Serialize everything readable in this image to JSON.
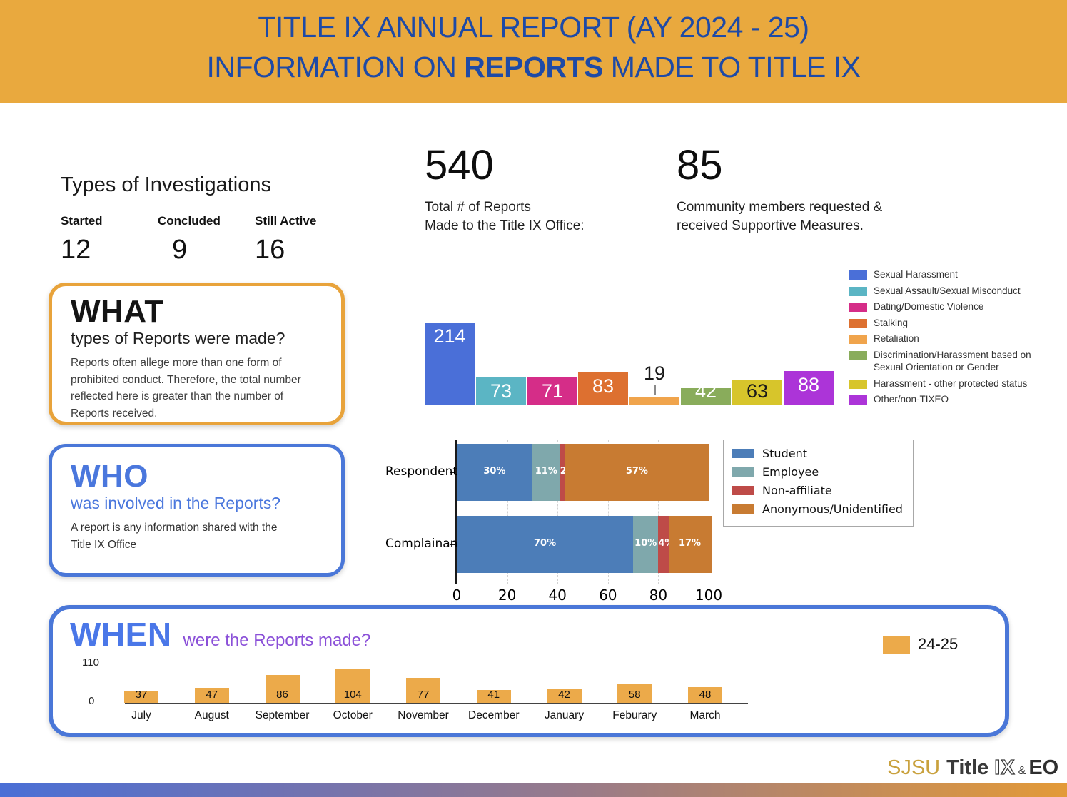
{
  "header": {
    "line1": "TITLE IX ANNUAL REPORT (AY 2024 - 25)",
    "line2_prefix": "INFORMATION ON ",
    "line2_bold": "REPORTS",
    "line2_suffix": " MADE TO TITLE IX",
    "bg_color": "#E9A93E",
    "text_color": "#1E4AA6"
  },
  "investigations": {
    "title": "Types of Investigations",
    "items": [
      {
        "label": "Started",
        "value": "12"
      },
      {
        "label": "Concluded",
        "value": "9"
      },
      {
        "label": "Still Active",
        "value": "16"
      }
    ]
  },
  "stats": [
    {
      "value": "540",
      "caption_lines": [
        "Total # of Reports",
        "Made to the Title IX Office:"
      ]
    },
    {
      "value": "85",
      "caption_lines": [
        "Community members requested &",
        "received Supportive Measures."
      ]
    }
  ],
  "what_card": {
    "title": "WHAT",
    "subtitle": "types of Reports were made?",
    "body": "Reports often allege more than one form of prohibited conduct. Therefore, the total number reflected here is greater than the number of Reports received.",
    "border_color": "#E8A33B"
  },
  "who_card": {
    "title": "WHO",
    "subtitle": "was involved in the Reports?",
    "body": "A report is any information shared with the Title IX Office",
    "border_color": "#4A77D8"
  },
  "when_card": {
    "title": "WHEN",
    "subtitle": "were the Reports made?",
    "legend_label": "24-25",
    "legend_color": "#ECAA4A",
    "border_color": "#4A77D8"
  },
  "footer": {
    "logo_sjsu": "SJSU",
    "logo_title": "Title",
    "logo_ix": "IX",
    "logo_amp": "&",
    "logo_eo": "EO"
  },
  "chart_data": [
    {
      "id": "report_types",
      "type": "bar",
      "title": "WHAT types of Reports were made?",
      "categories": [
        "Sexual Harassment",
        "Sexual Assault/Sexual Misconduct",
        "Dating/Domestic Violence",
        "Stalking",
        "Retaliation",
        "Discrimination/Harassment based on Sexual Orientation or Gender",
        "Harassment - other protected status",
        "Other/non-TIXEO"
      ],
      "values": [
        214,
        73,
        71,
        83,
        19,
        42,
        63,
        88
      ],
      "colors": [
        "#4A6FD8",
        "#5BB5C4",
        "#D52D88",
        "#DD7030",
        "#F0A44C",
        "#89AC5B",
        "#D7C52B",
        "#AC34D8"
      ],
      "label_colors": [
        "#ffffff",
        "#ffffff",
        "#ffffff",
        "#ffffff",
        "#1a1a1a",
        "#ffffff",
        "#1a1a1a",
        "#ffffff"
      ],
      "label_anchor": [
        "top",
        "bottom",
        "bottom",
        "top",
        "callout",
        "bottom",
        "bottom",
        "top"
      ],
      "legend_position": "right",
      "grid": false
    },
    {
      "id": "who_involved",
      "type": "bar",
      "orientation": "horizontal",
      "stacked": true,
      "title": "WHO was involved in the Reports?",
      "categories": [
        "Respondents",
        "Complainants"
      ],
      "series": [
        {
          "name": "Student",
          "color": "#4C7DB8",
          "values": [
            30,
            70
          ]
        },
        {
          "name": "Employee",
          "color": "#7FA8AC",
          "values": [
            11,
            10
          ]
        },
        {
          "name": "Non-affiliate",
          "color": "#BE4B48",
          "values": [
            2,
            4
          ]
        },
        {
          "name": "Anonymous/Unidentified",
          "color": "#C87B32",
          "values": [
            57,
            17
          ]
        }
      ],
      "value_suffix": "%",
      "xlim": [
        0,
        100
      ],
      "xticks": [
        0,
        20,
        40,
        60,
        80,
        100
      ],
      "grid": true,
      "legend_position": "upper right"
    },
    {
      "id": "when_reports",
      "type": "bar",
      "title": "WHEN were the Reports made?",
      "categories": [
        "July",
        "August",
        "September",
        "October",
        "November",
        "December",
        "January",
        "Feburary",
        "March"
      ],
      "values": [
        37,
        47,
        86,
        104,
        77,
        41,
        42,
        58,
        48
      ],
      "color": "#ECAA4A",
      "ylim": [
        0,
        110
      ],
      "yticks": [
        0,
        110
      ],
      "legend_entries": [
        "24-25"
      ],
      "legend_position": "upper right",
      "grid": false
    }
  ]
}
